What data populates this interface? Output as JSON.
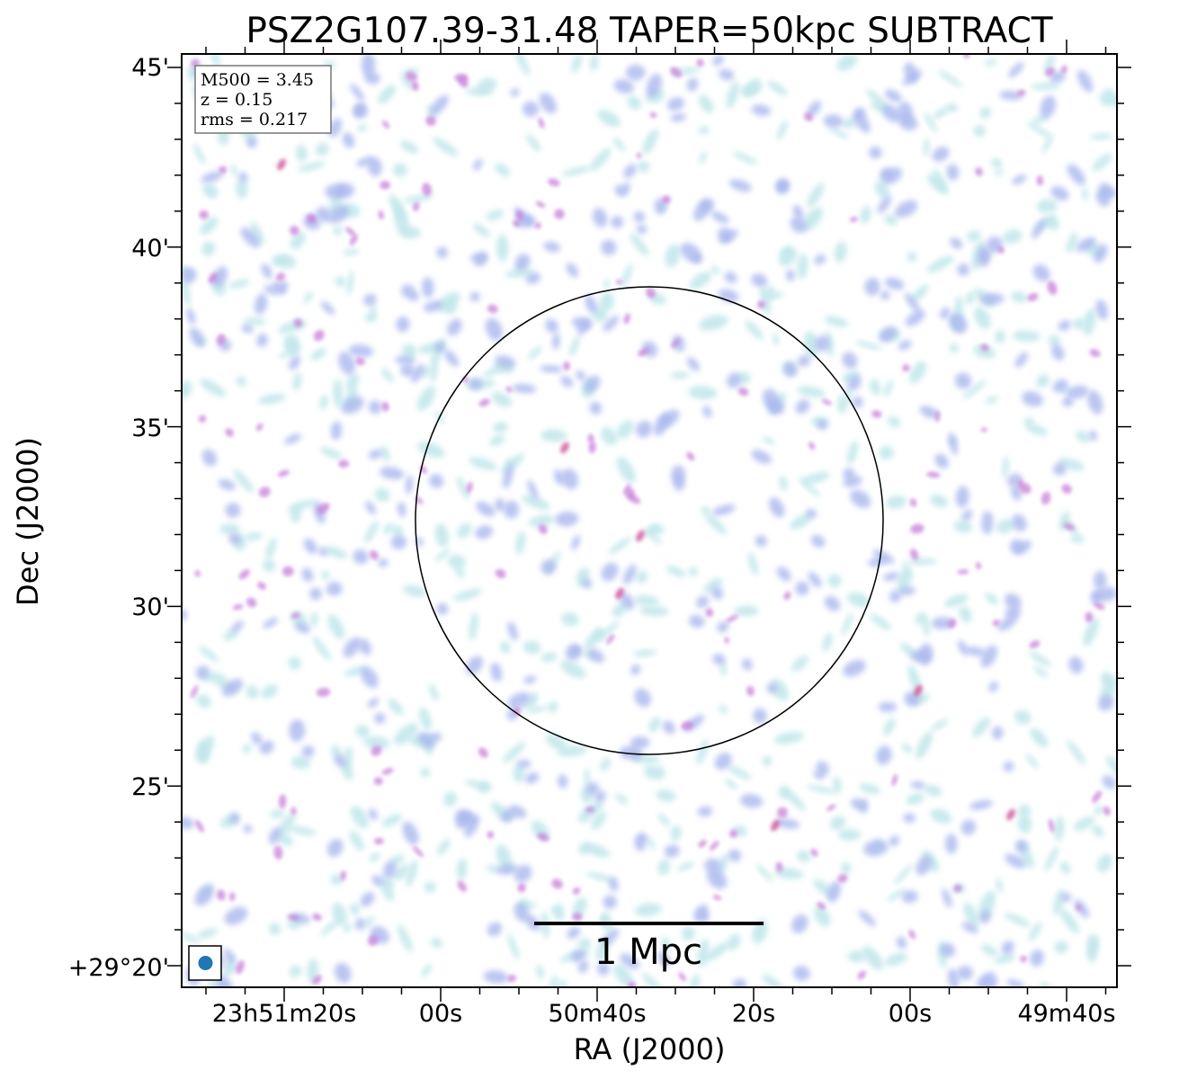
{
  "figure": {
    "title": "PSZ2G107.39-31.48 TAPER=50kpc SUBTRACT",
    "xlabel": "RA (J2000)",
    "ylabel": "Dec (J2000)"
  },
  "info_box": {
    "lines": [
      "M500 = 3.45",
      "z = 0.15",
      "rms = 0.217"
    ]
  },
  "scale_bar": {
    "label": "1 Mpc"
  },
  "axes": {
    "x_ticks": [
      "23h51m20s",
      "00s",
      "50m40s",
      "20s",
      "00s",
      "49m40s"
    ],
    "y_ticks": [
      "45'",
      "40'",
      "35'",
      "30'",
      "25'",
      "+29°20'"
    ]
  },
  "colors": {
    "emission_low": "#bfe6ea",
    "emission_mid": "#aab8ee",
    "emission_high": "#c77fd8",
    "emission_peak": "#c9408a",
    "beam": "#1f77b4",
    "frame": "#000000"
  }
}
